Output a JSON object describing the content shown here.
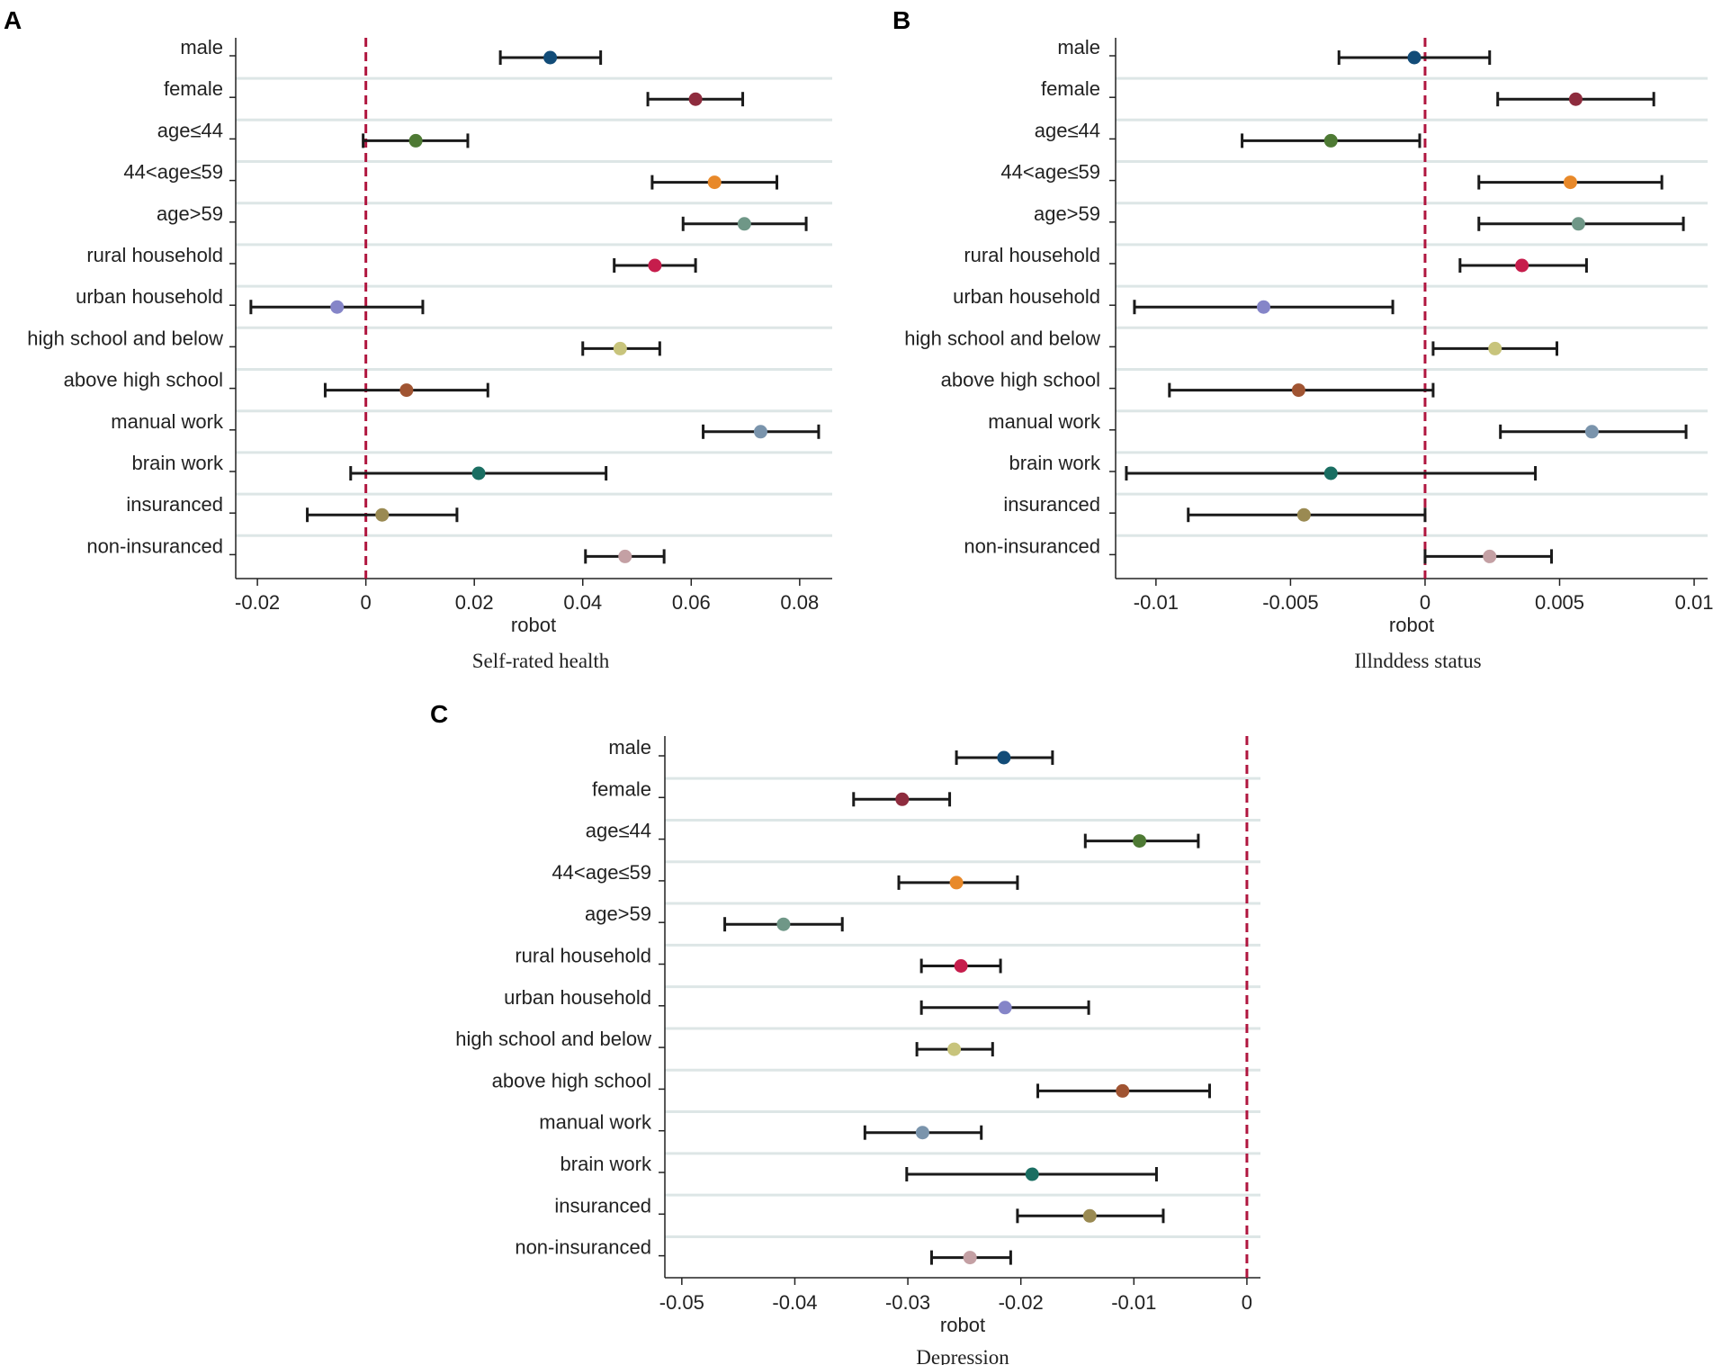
{
  "figure": {
    "categories": [
      "male",
      "female",
      "age≤44",
      "44<age≤59",
      "age>59",
      "rural household",
      "urban household",
      "high school and below",
      "above high school",
      "manual work",
      "brain work",
      "insuranced",
      "non-insuranced"
    ],
    "colors": [
      "#124c78",
      "#8e2c3e",
      "#4e7a34",
      "#e8892a",
      "#6f9787",
      "#c61d4c",
      "#8585c8",
      "#c8c47c",
      "#a05432",
      "#7a94ac",
      "#1a6e62",
      "#9a8a52",
      "#c4a0a4"
    ],
    "reference_line_color": "#b0163f",
    "errorbar_color": "#1a1a1a",
    "gridline_color": "#dde6e6"
  },
  "chart_data": [
    {
      "panel": "A",
      "type": "scatter",
      "kind": "forest",
      "xlabel": "robot",
      "caption": "Self-rated health",
      "xlim": [
        -0.024,
        0.086
      ],
      "xticks": [
        -0.02,
        0,
        0.02,
        0.04,
        0.06,
        0.08
      ],
      "xtick_labels": [
        "-0.02",
        "0",
        "0.02",
        "0.04",
        "0.06",
        "0.08"
      ],
      "reference_x": 0,
      "estimates": [
        0.034,
        0.0608,
        0.0092,
        0.0643,
        0.0698,
        0.0533,
        -0.0053,
        0.0469,
        0.0075,
        0.0728,
        0.0208,
        0.003,
        0.0478
      ],
      "ci_low": [
        0.0248,
        0.052,
        -0.0005,
        0.0528,
        0.0585,
        0.0458,
        -0.0212,
        0.04,
        -0.0075,
        0.0622,
        -0.0028,
        -0.0108,
        0.0405
      ],
      "ci_high": [
        0.0433,
        0.0695,
        0.0188,
        0.0758,
        0.0812,
        0.0608,
        0.0105,
        0.0542,
        0.0225,
        0.0835,
        0.0443,
        0.0168,
        0.055
      ]
    },
    {
      "panel": "B",
      "type": "scatter",
      "kind": "forest",
      "xlabel": "robot",
      "caption": "Illnddess status",
      "xlim": [
        -0.0115,
        0.0105
      ],
      "xticks": [
        -0.01,
        -0.005,
        0,
        0.005,
        0.01
      ],
      "xtick_labels": [
        "-0.01",
        "-0.005",
        "0",
        "0.005",
        "0.01"
      ],
      "reference_x": 0,
      "estimates": [
        -0.0004,
        0.0056,
        -0.0035,
        0.0054,
        0.0057,
        0.0036,
        -0.006,
        0.0026,
        -0.0047,
        0.0062,
        -0.0035,
        -0.0045,
        0.0024
      ],
      "ci_low": [
        -0.0032,
        0.0027,
        -0.0068,
        0.002,
        0.002,
        0.0013,
        -0.0108,
        0.0003,
        -0.0095,
        0.0028,
        -0.0111,
        -0.0088,
        0.0
      ],
      "ci_high": [
        0.0024,
        0.0085,
        -0.0002,
        0.0088,
        0.0096,
        0.006,
        -0.0012,
        0.0049,
        0.0003,
        0.0097,
        0.0041,
        0.0,
        0.0047
      ]
    },
    {
      "panel": "C",
      "type": "scatter",
      "kind": "forest",
      "xlabel": "robot",
      "caption": "Depression",
      "xlim": [
        -0.0515,
        0.0012
      ],
      "xticks": [
        -0.05,
        -0.04,
        -0.03,
        -0.02,
        -0.01,
        0
      ],
      "xtick_labels": [
        "-0.05",
        "-0.04",
        "-0.03",
        "-0.02",
        "-0.01",
        "0"
      ],
      "reference_x": 0,
      "estimates": [
        -0.0215,
        -0.0305,
        -0.0095,
        -0.0257,
        -0.041,
        -0.0253,
        -0.0214,
        -0.0259,
        -0.011,
        -0.0287,
        -0.019,
        -0.0139,
        -0.0245
      ],
      "ci_low": [
        -0.0257,
        -0.0348,
        -0.0143,
        -0.0308,
        -0.0462,
        -0.0288,
        -0.0288,
        -0.0292,
        -0.0185,
        -0.0338,
        -0.0301,
        -0.0203,
        -0.0279
      ],
      "ci_high": [
        -0.0172,
        -0.0263,
        -0.0043,
        -0.0203,
        -0.0358,
        -0.0218,
        -0.014,
        -0.0225,
        -0.0033,
        -0.0235,
        -0.008,
        -0.0074,
        -0.0209
      ]
    }
  ]
}
